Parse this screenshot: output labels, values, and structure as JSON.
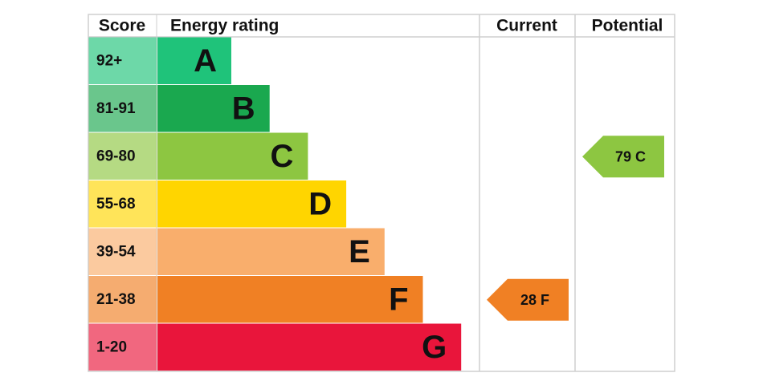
{
  "headers": {
    "score": "Score",
    "rating": "Energy rating",
    "current": "Current",
    "potential": "Potential"
  },
  "bands": [
    {
      "score": "92+",
      "letter": "A",
      "color": "#1fc37a"
    },
    {
      "score": "81-91",
      "letter": "B",
      "color": "#1aa84f"
    },
    {
      "score": "69-80",
      "letter": "C",
      "color": "#8dc641"
    },
    {
      "score": "55-68",
      "letter": "D",
      "color": "#ffd500"
    },
    {
      "score": "39-54",
      "letter": "E",
      "color": "#f9ae6c"
    },
    {
      "score": "21-38",
      "letter": "F",
      "color": "#f08024"
    },
    {
      "score": "1-20",
      "letter": "G",
      "color": "#e9153b"
    }
  ],
  "current": {
    "value": 28,
    "band": "F"
  },
  "potential": {
    "value": 79,
    "band": "C"
  }
}
